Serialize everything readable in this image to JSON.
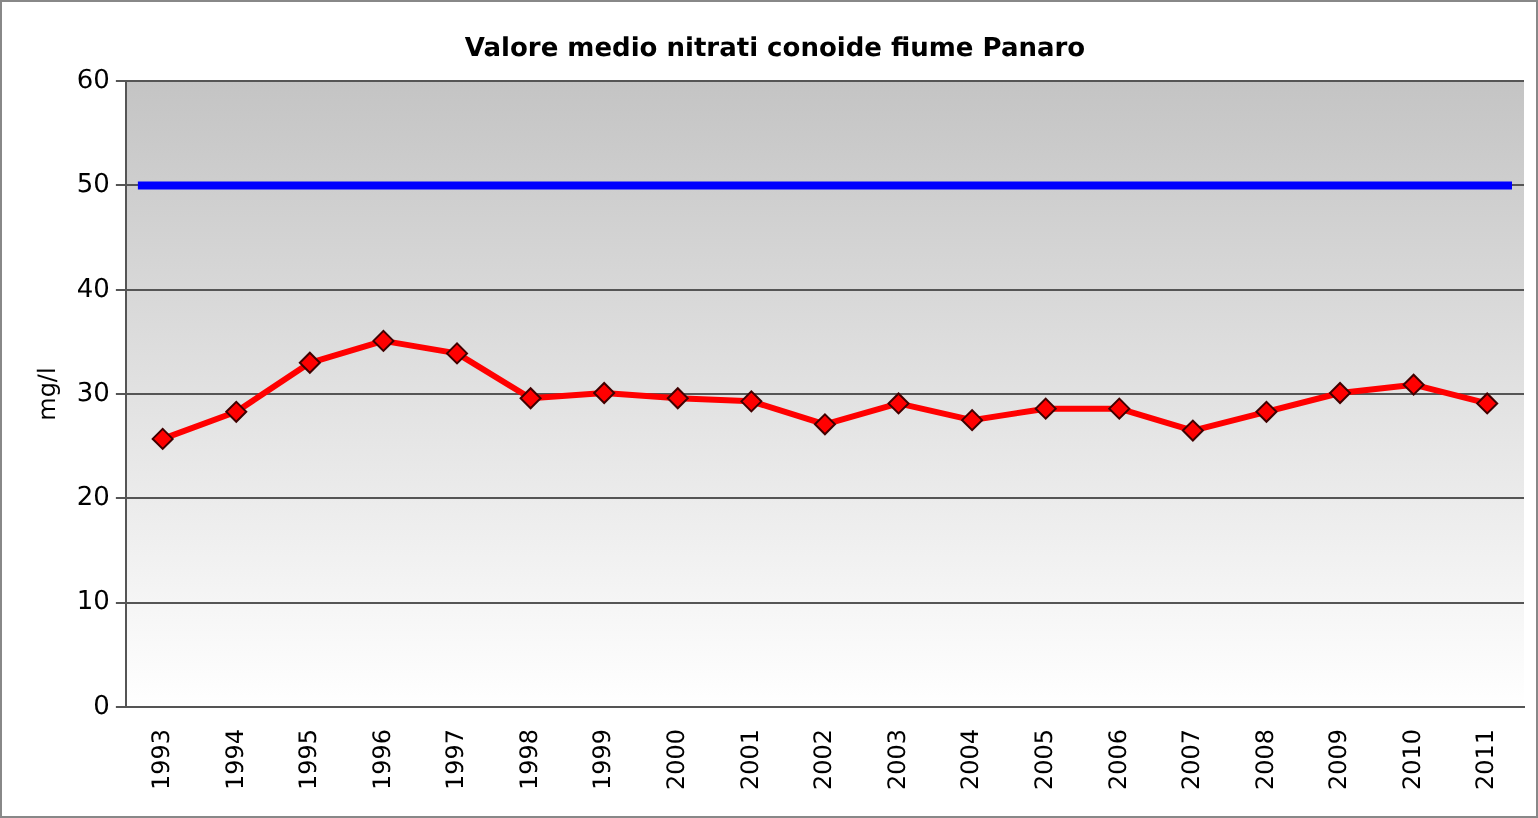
{
  "chart_data": {
    "type": "line",
    "title": "Valore medio nitrati conoide fiume Panaro",
    "ylabel": "mg/l",
    "categories": [
      "1993",
      "1994",
      "1995",
      "1996",
      "1997",
      "1998",
      "1999",
      "2000",
      "2001",
      "2002",
      "2003",
      "2004",
      "2005",
      "2006",
      "2007",
      "2008",
      "2009",
      "2010",
      "2011"
    ],
    "series": [
      {
        "color": "#ff0000",
        "values": [
          25.7,
          28.3,
          33.0,
          35.1,
          33.9,
          29.6,
          30.1,
          29.6,
          29.3,
          27.1,
          29.1,
          27.5,
          28.6,
          28.6,
          26.5,
          28.3,
          30.1,
          30.9,
          29.1
        ]
      }
    ],
    "ylim": [
      0,
      60
    ],
    "yticks": [
      0,
      10,
      20,
      30,
      40,
      50,
      60
    ],
    "grid": "y",
    "legend": false,
    "marker": "diamond",
    "line_style": "solid",
    "ref_lines": [
      {
        "axis": "y",
        "value": 50,
        "color": "#0000ff"
      }
    ]
  }
}
